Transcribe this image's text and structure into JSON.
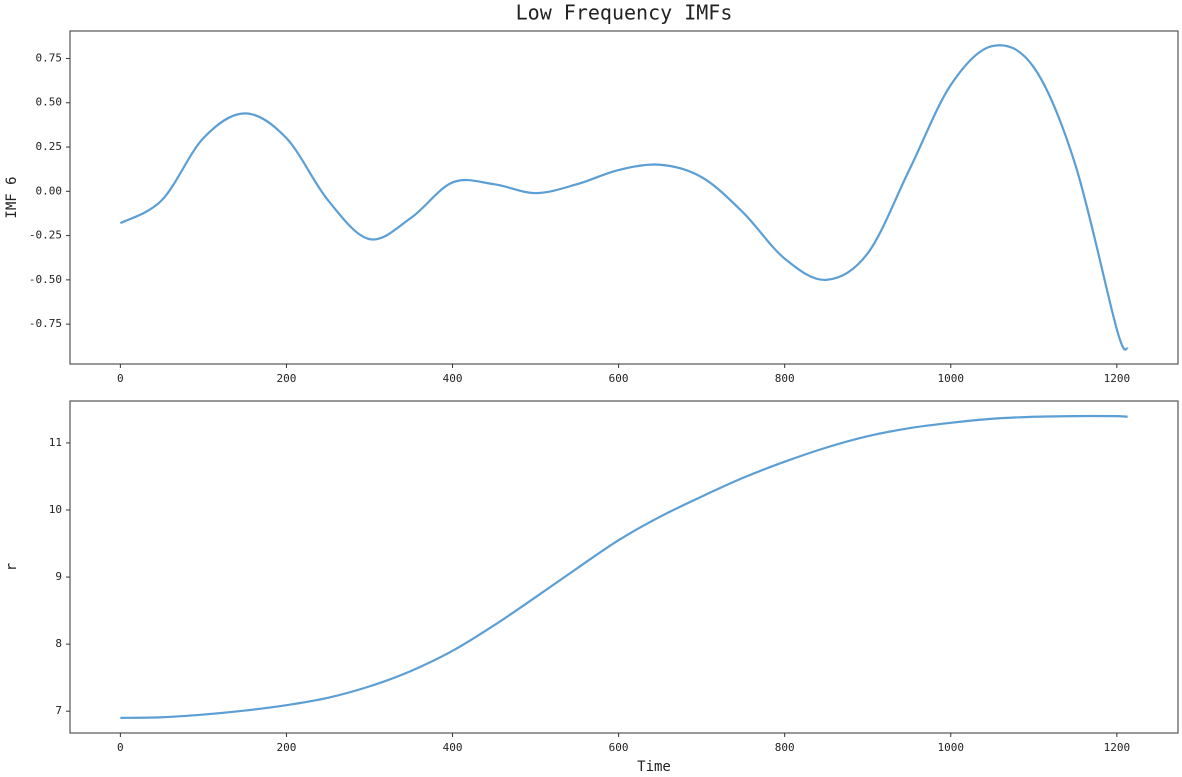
{
  "chart_data": [
    {
      "type": "line",
      "title": "Low Frequency IMFs",
      "ylabel": "IMF 6",
      "x": [
        0,
        50,
        100,
        150,
        200,
        250,
        300,
        350,
        400,
        450,
        500,
        550,
        600,
        650,
        700,
        750,
        800,
        850,
        900,
        950,
        1000,
        1050,
        1100,
        1150,
        1200,
        1213
      ],
      "series": [
        {
          "color": "#5b9fd5",
          "values": [
            -0.18,
            -0.05,
            0.3,
            0.44,
            0.3,
            -0.05,
            -0.27,
            -0.15,
            0.05,
            0.04,
            -0.01,
            0.04,
            0.12,
            0.15,
            0.08,
            -0.12,
            -0.38,
            -0.5,
            -0.35,
            0.12,
            0.6,
            0.82,
            0.7,
            0.15,
            -0.78,
            -0.89
          ]
        }
      ],
      "xlim": [
        -60.65,
        1273.65
      ],
      "xticks": [
        0,
        200,
        400,
        600,
        800,
        1000,
        1200
      ],
      "ylim": [
        -0.975,
        0.905
      ],
      "yticks": [
        {
          "value": -0.75,
          "label": "-0.75"
        },
        {
          "value": -0.5,
          "label": "-0.50"
        },
        {
          "value": -0.25,
          "label": "-0.25"
        },
        {
          "value": 0,
          "label": "0.00"
        },
        {
          "value": 0.25,
          "label": "0.25"
        },
        {
          "value": 0.5,
          "label": "0.50"
        },
        {
          "value": 0.75,
          "label": "0.75"
        }
      ],
      "grid": false
    },
    {
      "type": "line",
      "ylabel": "r",
      "xlabel": "Time",
      "x": [
        0,
        50,
        100,
        150,
        200,
        250,
        300,
        350,
        400,
        450,
        500,
        550,
        600,
        650,
        700,
        750,
        800,
        850,
        900,
        950,
        1000,
        1050,
        1100,
        1150,
        1200,
        1213
      ],
      "series": [
        {
          "color": "#5b9fd5",
          "values": [
            6.9,
            6.91,
            6.95,
            7.01,
            7.09,
            7.2,
            7.37,
            7.6,
            7.9,
            8.28,
            8.7,
            9.13,
            9.55,
            9.9,
            10.2,
            10.48,
            10.72,
            10.93,
            11.1,
            11.22,
            11.3,
            11.36,
            11.39,
            11.4,
            11.4,
            11.39
          ]
        }
      ],
      "xlim": [
        -60.65,
        1273.65
      ],
      "xticks": [
        0,
        200,
        400,
        600,
        800,
        1000,
        1200
      ],
      "ylim": [
        6.675,
        11.625
      ],
      "yticks": [
        7,
        8,
        9,
        10,
        11
      ],
      "grid": false
    }
  ]
}
